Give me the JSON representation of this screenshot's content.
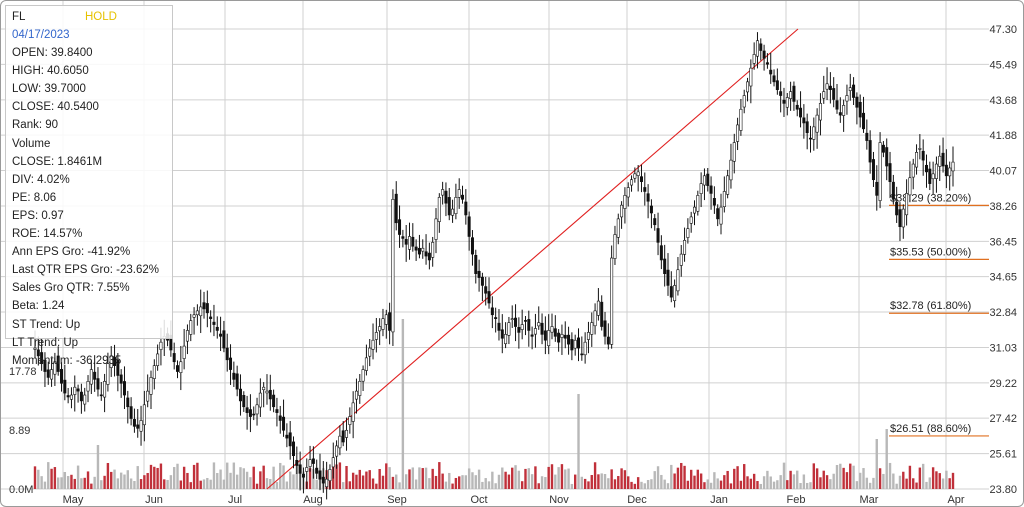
{
  "info": {
    "symbol": "FL",
    "rating": "HOLD",
    "date": "04/17/2023",
    "rows": [
      "OPEN: 39.8400",
      "HIGH: 40.6050",
      "LOW: 39.7000",
      "CLOSE: 40.5400",
      "Rank: 90",
      "Volume",
      "CLOSE: 1.8461M",
      "DIV: 4.02%",
      "PE: 8.06",
      "EPS: 0.97",
      "ROE: 14.57%",
      "Ann EPS Gro: -41.92%",
      "Last QTR EPS Gro: -23.62%",
      "Sales Gro QTR: 7.55%",
      "Beta: 1.24",
      "ST Trend: Up",
      "LT Trend: Up",
      "Momentum: -36.2935"
    ]
  },
  "colors": {
    "up_volume": "#c0303a",
    "down_volume": "#b8b8b8",
    "trendline": "#e02020",
    "fib_line": "#e07020",
    "candle": "#111111",
    "grid": "#d0d0d0"
  },
  "chart_data": {
    "type": "candlestick",
    "x_tick_labels": [
      "May",
      "Jun",
      "Jul",
      "Aug",
      "Sep",
      "Oct",
      "Nov",
      "Dec",
      "Jan",
      "Feb",
      "Mar",
      "Apr"
    ],
    "price_axis": {
      "ylim": [
        23.8,
        47.3
      ],
      "ticks": [
        47.3,
        45.49,
        43.68,
        41.88,
        40.07,
        38.26,
        36.45,
        34.65,
        32.84,
        31.03,
        29.22,
        27.42,
        25.61,
        23.8
      ],
      "tick_labels": [
        "47.30",
        "45.49",
        "43.68",
        "41.88",
        "40.07",
        "38.26",
        "36.45",
        "34.65",
        "32.84",
        "31.03",
        "29.22",
        "27.42",
        "25.61",
        "23.80"
      ]
    },
    "volume_axis": {
      "tick_labels": [
        "17.78",
        "8.89",
        "0.0M"
      ]
    },
    "fibonacci_levels": [
      {
        "value": 38.29,
        "label": "$38.29 (38.20%)"
      },
      {
        "value": 35.53,
        "label": "$35.53 (50.00%)"
      },
      {
        "value": 32.78,
        "label": "$32.78 (61.80%)"
      },
      {
        "value": 26.51,
        "label": "$26.51 (88.60%)"
      }
    ],
    "trendline": {
      "from": {
        "date": "Jul",
        "price": 23.8
      },
      "to": {
        "date": "Feb",
        "price": 47.3
      }
    },
    "closes": [
      31.0,
      30.6,
      30.2,
      29.8,
      29.5,
      29.9,
      30.3,
      29.8,
      29.2,
      28.7,
      28.5,
      28.6,
      29.0,
      28.8,
      28.3,
      28.6,
      29.3,
      29.9,
      29.4,
      28.9,
      28.6,
      29.3,
      30.2,
      30.6,
      30.1,
      29.6,
      29.2,
      28.6,
      28.0,
      27.4,
      27.0,
      26.9,
      27.3,
      28.1,
      28.8,
      29.5,
      30.1,
      30.7,
      31.3,
      31.6,
      31.4,
      30.9,
      30.3,
      29.8,
      30.3,
      31.1,
      31.9,
      32.4,
      32.7,
      32.9,
      33.1,
      33.0,
      32.8,
      32.5,
      32.2,
      31.9,
      31.6,
      31.0,
      30.4,
      29.9,
      29.4,
      28.9,
      28.3,
      28.0,
      27.7,
      27.5,
      27.6,
      28.1,
      28.7,
      29.0,
      28.8,
      28.4,
      28.0,
      27.7,
      27.3,
      26.8,
      26.4,
      26.0,
      25.5,
      25.0,
      24.6,
      24.4,
      24.9,
      25.3,
      25.1,
      24.6,
      24.3,
      24.1,
      24.3,
      24.8,
      25.4,
      26.0,
      26.5,
      26.2,
      26.8,
      27.5,
      28.2,
      28.8,
      29.3,
      29.9,
      30.5,
      31.0,
      31.4,
      31.8,
      32.1,
      32.5,
      32.7,
      31.9,
      38.6,
      37.4,
      36.8,
      36.6,
      36.3,
      36.7,
      36.2,
      36.0,
      35.8,
      36.1,
      35.7,
      35.5,
      36.4,
      37.6,
      38.7,
      39.1,
      38.4,
      37.8,
      38.1,
      38.7,
      39.1,
      38.6,
      37.8,
      36.7,
      35.8,
      34.8,
      34.6,
      34.2,
      33.8,
      33.3,
      32.7,
      32.5,
      31.9,
      31.5,
      31.7,
      32.3,
      32.5,
      32.1,
      31.8,
      32.2,
      32.4,
      31.9,
      31.6,
      32.0,
      32.3,
      31.7,
      31.4,
      31.9,
      32.1,
      31.6,
      31.3,
      31.7,
      31.5,
      31.2,
      30.9,
      31.4,
      31.0,
      30.7,
      31.3,
      31.8,
      32.3,
      32.9,
      33.4,
      32.1,
      31.6,
      31.2,
      35.6,
      36.8,
      37.6,
      38.3,
      38.8,
      39.2,
      39.6,
      39.9,
      40.0,
      39.5,
      39.0,
      38.5,
      37.9,
      37.3,
      36.4,
      35.5,
      34.8,
      34.2,
      33.6,
      34.2,
      35.0,
      35.8,
      36.5,
      37.1,
      37.7,
      38.2,
      38.8,
      39.4,
      39.8,
      39.3,
      38.9,
      38.3,
      37.6,
      38.2,
      39.0,
      39.8,
      40.6,
      41.5,
      42.4,
      43.2,
      43.9,
      44.6,
      45.3,
      46.0,
      46.7,
      46.2,
      45.8,
      45.5,
      45.0,
      44.6,
      44.2,
      43.9,
      43.5,
      43.8,
      44.1,
      43.6,
      43.2,
      42.8,
      42.5,
      42.0,
      41.7,
      42.3,
      42.9,
      43.5,
      44.1,
      44.5,
      44.2,
      43.7,
      43.2,
      42.9,
      43.4,
      43.9,
      44.3,
      43.8,
      43.3,
      42.8,
      42.2,
      41.6,
      40.5,
      39.6,
      38.8,
      41.5,
      41.0,
      40.3,
      39.5,
      38.6,
      37.8,
      37.2,
      38.1,
      38.9,
      39.7,
      40.4,
      41.0,
      41.2,
      40.6,
      40.0,
      39.4,
      39.9,
      40.4,
      40.8,
      40.3,
      39.8,
      40.2,
      40.5
    ],
    "volume_baseline": 3.5
  }
}
